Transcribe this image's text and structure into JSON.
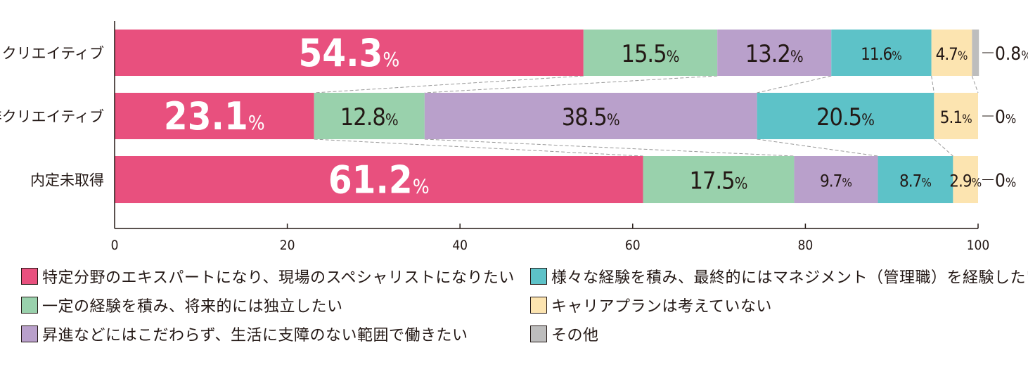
{
  "chart_data": {
    "type": "bar",
    "orientation": "horizontal",
    "stacked": true,
    "percent": true,
    "categories": [
      "クリエイティブ",
      "非クリエイティブ",
      "内定未取得"
    ],
    "series": [
      {
        "name": "特定分野のエキスパートになり、現場のスペシャリストになりたい",
        "color": "#E8507E",
        "values": [
          54.3,
          23.1,
          61.2
        ],
        "labels": [
          "54.3",
          "23.1",
          "61.2"
        ]
      },
      {
        "name": "一定の経験を積み、将来的には独立したい",
        "color": "#99D1AC",
        "values": [
          15.5,
          12.8,
          17.5
        ],
        "labels": [
          "15.5",
          "12.8",
          "17.5"
        ]
      },
      {
        "name": "昇進などにはこだわらず、生活に支障のない範囲で働きたい",
        "color": "#B9A0CB",
        "values": [
          13.2,
          38.5,
          9.7
        ],
        "labels": [
          "13.2",
          "38.5",
          "9.7"
        ]
      },
      {
        "name": "様々な経験を積み、最終的にはマネジメント（管理職）を経験したい",
        "color": "#5DC2C8",
        "values": [
          11.6,
          20.5,
          8.7
        ],
        "labels": [
          "11.6",
          "20.5",
          "8.7"
        ]
      },
      {
        "name": "キャリアプランは考えていない",
        "color": "#FCE4B0",
        "values": [
          4.7,
          5.1,
          2.9
        ],
        "labels": [
          "4.7",
          "5.1",
          "2.9"
        ]
      },
      {
        "name": "その他",
        "color": "#BDBDBD",
        "values": [
          0.8,
          0,
          0
        ],
        "labels": [
          "0.8",
          "0",
          "0"
        ]
      }
    ],
    "unit": "%",
    "xlim": [
      0,
      100
    ],
    "xticks": [
      "0",
      "20",
      "40",
      "60",
      "80",
      "100"
    ],
    "grid": false,
    "legend_position": "bottom"
  }
}
